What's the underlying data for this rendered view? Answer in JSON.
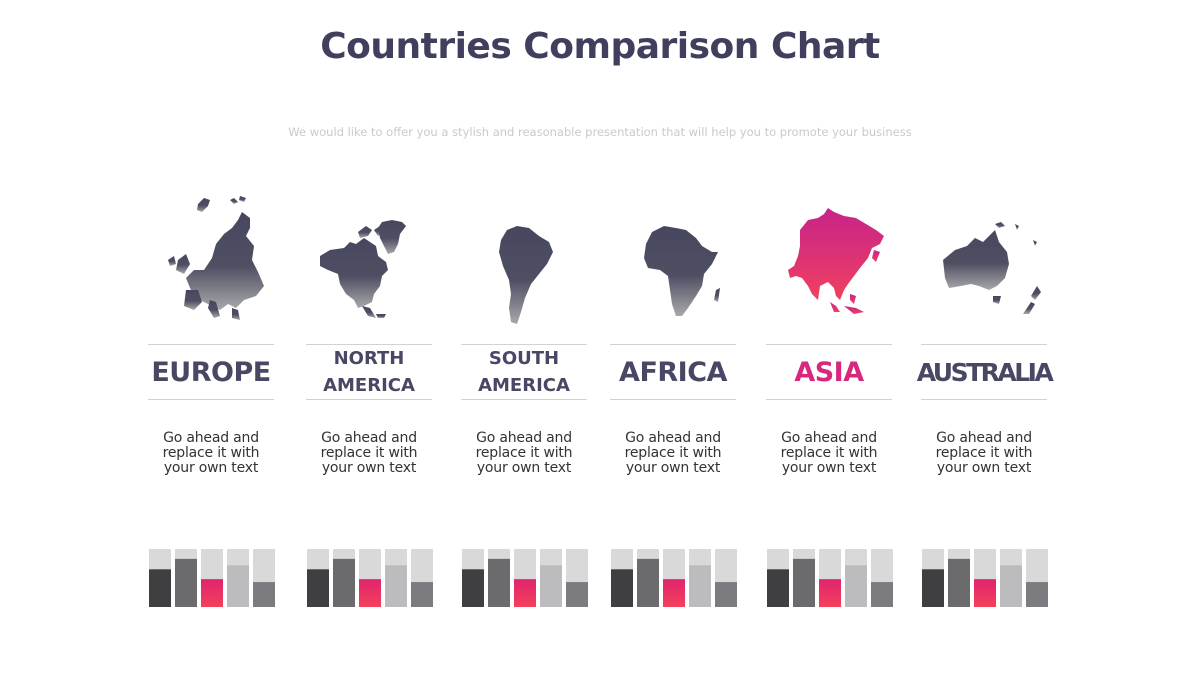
{
  "title": "Countries Comparison Chart",
  "subtitle": "We would like to offer you a stylish and reasonable presentation that will help you to promote your business",
  "colors": {
    "title": "#40405e",
    "dark": "#46465f",
    "accent_top": "#c7238a",
    "accent_bottom": "#f04060",
    "bar_track": "#d9d9d9",
    "bar_1": "#3f3f42",
    "bar_2": "#6b6b6e",
    "bar_3": "#e63872",
    "bar_4": "#bcbcbf",
    "bar_5": "#7c7c80"
  },
  "continents": [
    {
      "id": "europe",
      "name": "EUROPE",
      "description": "Go ahead and replace it with your own text",
      "highlight": false,
      "map_icon": "europe-map-icon"
    },
    {
      "id": "north-america",
      "name": "NORTH AMERICA",
      "description": "Go ahead and replace it with your own text",
      "highlight": false,
      "map_icon": "north-america-map-icon"
    },
    {
      "id": "south-america",
      "name": "SOUTH AMERICA",
      "description": "Go ahead and replace it with your own text",
      "highlight": false,
      "map_icon": "south-america-map-icon"
    },
    {
      "id": "africa",
      "name": "AFRICA",
      "description": "Go ahead and replace it with your own text",
      "highlight": false,
      "map_icon": "africa-map-icon"
    },
    {
      "id": "asia",
      "name": "ASIA",
      "description": "Go ahead and replace it with your own text",
      "highlight": true,
      "map_icon": "asia-map-icon"
    },
    {
      "id": "australia",
      "name": "AUSTRALIA",
      "description": "Go ahead and replace it with your own text",
      "highlight": false,
      "map_icon": "australia-map-icon"
    }
  ],
  "chart_data": {
    "type": "bar",
    "ylim": [
      0,
      100
    ],
    "groups": [
      {
        "continent": "EUROPE",
        "values": [
          65,
          83,
          48,
          72,
          43
        ]
      },
      {
        "continent": "NORTH AMERICA",
        "values": [
          65,
          83,
          48,
          72,
          43
        ]
      },
      {
        "continent": "SOUTH AMERICA",
        "values": [
          65,
          83,
          48,
          72,
          43
        ]
      },
      {
        "continent": "AFRICA",
        "values": [
          65,
          83,
          48,
          72,
          43
        ]
      },
      {
        "continent": "ASIA",
        "values": [
          65,
          83,
          48,
          72,
          43
        ]
      },
      {
        "continent": "AUSTRALIA",
        "values": [
          65,
          83,
          48,
          72,
          43
        ]
      }
    ]
  }
}
